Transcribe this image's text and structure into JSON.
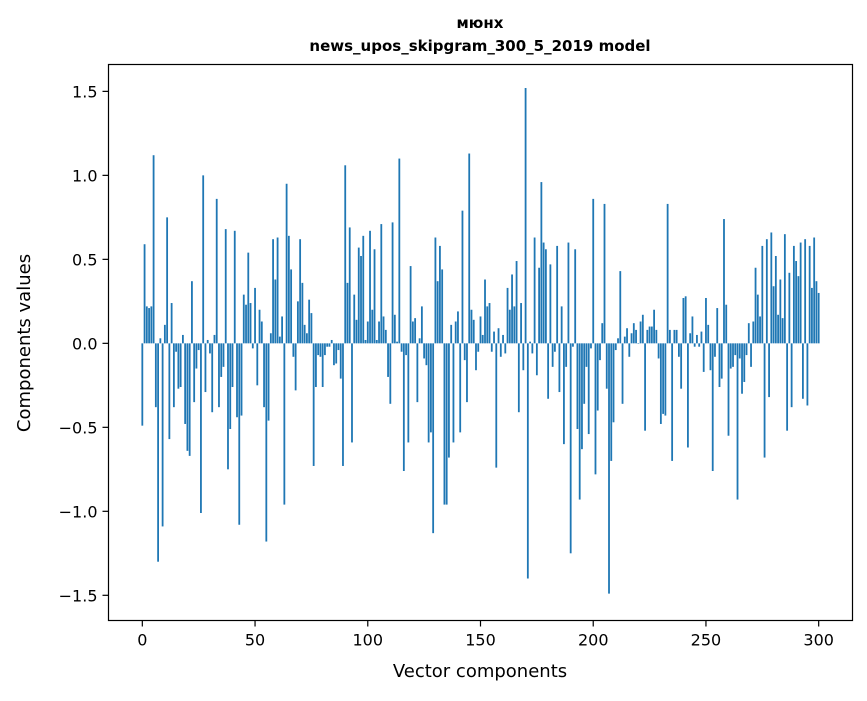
{
  "chart_data": {
    "type": "bar",
    "title_line1": "мюнх",
    "title_line2": "news_upos_skipgram_300_5_2019 model",
    "xlabel": "Vector components",
    "ylabel": "Components values",
    "xlim": [
      -15,
      315
    ],
    "ylim": [
      -1.65,
      1.66
    ],
    "xticks": [
      0,
      50,
      100,
      150,
      200,
      250,
      300
    ],
    "xtick_labels": [
      "0",
      "50",
      "100",
      "150",
      "200",
      "250",
      "300"
    ],
    "yticks": [
      1.5,
      1.0,
      0.5,
      0.0,
      -0.5,
      -1.0,
      -1.5
    ],
    "ytick_labels": [
      "1.5",
      "1.0",
      "0.5",
      "0.0",
      "−0.5",
      "−1.0",
      "−1.5"
    ],
    "bar_color": "#1f77b4",
    "values": [
      -0.49,
      0.59,
      0.22,
      0.21,
      0.22,
      1.12,
      -0.38,
      -1.3,
      0.03,
      -1.09,
      0.11,
      0.75,
      -0.57,
      0.24,
      -0.38,
      -0.05,
      -0.27,
      -0.26,
      0.05,
      -0.48,
      -0.64,
      -0.67,
      0.37,
      -0.35,
      -0.15,
      -0.04,
      -1.01,
      1.0,
      -0.29,
      0.02,
      -0.06,
      -0.41,
      0.05,
      0.86,
      -0.38,
      -0.2,
      -0.14,
      0.68,
      -0.75,
      -0.51,
      -0.26,
      0.67,
      -0.44,
      -1.08,
      -0.43,
      0.29,
      0.23,
      0.54,
      0.24,
      -0.03,
      0.33,
      -0.25,
      0.2,
      0.13,
      -0.38,
      -1.18,
      -0.46,
      0.06,
      0.62,
      0.38,
      0.63,
      0.04,
      0.16,
      -0.96,
      0.95,
      0.64,
      0.44,
      -0.08,
      -0.28,
      0.25,
      0.62,
      0.36,
      0.11,
      0.06,
      0.26,
      0.18,
      -0.73,
      -0.26,
      -0.07,
      -0.08,
      -0.26,
      -0.07,
      -0.02,
      -0.02,
      0.02,
      -0.13,
      -0.12,
      -0.04,
      -0.21,
      -0.73,
      1.06,
      0.36,
      0.69,
      -0.59,
      0.29,
      0.14,
      0.57,
      0.52,
      0.64,
      0.02,
      0.13,
      0.67,
      0.2,
      0.56,
      0.02,
      0.13,
      0.71,
      0.16,
      0.08,
      -0.2,
      -0.36,
      0.72,
      0.17,
      0.01,
      1.1,
      -0.05,
      -0.76,
      -0.07,
      -0.59,
      0.46,
      0.13,
      0.15,
      -0.35,
      0.03,
      0.22,
      -0.09,
      -0.13,
      -0.59,
      -0.53,
      -1.13,
      0.63,
      0.37,
      0.58,
      0.44,
      -0.96,
      -0.96,
      -0.68,
      0.11,
      -0.59,
      0.13,
      0.19,
      -0.53,
      0.79,
      -0.1,
      -0.35,
      1.13,
      0.2,
      0.14,
      -0.16,
      -0.05,
      0.16,
      0.05,
      0.38,
      0.22,
      0.24,
      -0.05,
      0.07,
      -0.74,
      0.09,
      -0.08,
      0.05,
      -0.06,
      0.33,
      0.2,
      0.41,
      0.22,
      0.49,
      -0.41,
      0.24,
      -0.16,
      1.52,
      -1.4,
      0.01,
      -0.06,
      0.63,
      -0.19,
      0.45,
      0.96,
      0.6,
      0.56,
      -0.33,
      0.47,
      -0.14,
      -0.05,
      0.58,
      -0.29,
      0.22,
      -0.6,
      -0.14,
      0.6,
      -1.25,
      -0.02,
      0.56,
      -0.51,
      -0.93,
      -0.63,
      -0.36,
      -0.14,
      -0.54,
      -0.03,
      0.86,
      -0.78,
      -0.4,
      -0.1,
      0.12,
      0.83,
      -0.27,
      -1.49,
      -0.7,
      -0.47,
      -0.04,
      0.03,
      0.43,
      -0.36,
      0.04,
      0.09,
      -0.08,
      0.06,
      0.12,
      0.08,
      0.0,
      0.13,
      0.17,
      -0.52,
      0.08,
      0.1,
      0.1,
      0.2,
      0.08,
      -0.09,
      -0.48,
      -0.42,
      -0.43,
      0.83,
      0.08,
      -0.7,
      0.08,
      0.08,
      -0.08,
      -0.27,
      0.27,
      0.28,
      -0.62,
      0.06,
      0.16,
      -0.02,
      0.05,
      -0.02,
      0.07,
      -0.17,
      0.27,
      0.11,
      -0.16,
      -0.76,
      -0.08,
      0.21,
      -0.26,
      -0.21,
      0.74,
      0.23,
      -0.55,
      -0.15,
      -0.14,
      -0.07,
      -0.93,
      -0.09,
      -0.3,
      -0.23,
      -0.07,
      0.12,
      -0.14,
      0.13,
      0.45,
      0.29,
      0.16,
      0.58,
      -0.68,
      0.62,
      -0.32,
      0.66,
      0.34,
      0.52,
      0.17,
      0.38,
      0.15,
      0.65,
      -0.52,
      0.42,
      -0.38,
      0.58,
      0.49,
      0.4,
      0.6,
      -0.33,
      0.62,
      -0.37,
      0.58,
      0.33,
      0.63,
      0.37,
      0.3
    ]
  }
}
